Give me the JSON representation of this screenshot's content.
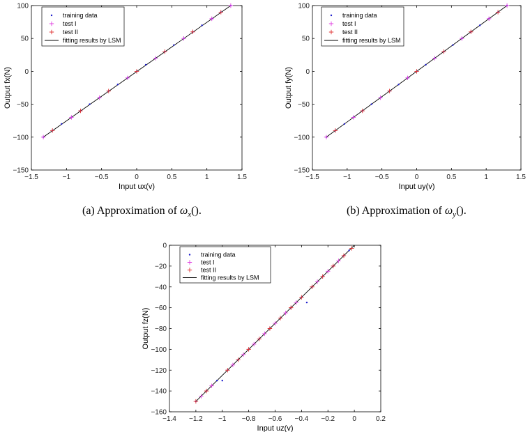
{
  "captions": [
    {
      "prefix": "(a)  Approximation of ",
      "symbol": "ω",
      "subscript": "x",
      "suffix": "()."
    },
    {
      "prefix": "(b)  Approximation of ",
      "symbol": "ω",
      "subscript": "y",
      "suffix": "()."
    }
  ],
  "chart_data": [
    {
      "type": "scatter",
      "xlabel": "Input ux(v)",
      "ylabel": "Output fx(N)",
      "xlim": [
        -1.5,
        1.5
      ],
      "ylim": [
        -150,
        100
      ],
      "xticks": [
        -1.5,
        -1,
        -0.5,
        0,
        0.5,
        1,
        1.5
      ],
      "yticks": [
        -150,
        -100,
        -50,
        0,
        50,
        100
      ],
      "xtick_labels": [
        "−1.5",
        "−1",
        "−0.5",
        "0",
        "0.5",
        "1",
        "1.5"
      ],
      "ytick_labels": [
        "−150",
        "−100",
        "−50",
        "0",
        "50",
        "100"
      ],
      "legend_position": "top-left",
      "legend": [
        "training data",
        "test I",
        "test II",
        "fitting results by LSM"
      ],
      "fit_line": {
        "x": [
          -1.33,
          1.34
        ],
        "y": [
          -100,
          100
        ]
      },
      "series": [
        {
          "name": "training data",
          "marker": "dot",
          "color": "#1a1acc",
          "x": [
            -1.33,
            -1.2,
            -1.07,
            -0.93,
            -0.8,
            -0.67,
            -0.53,
            -0.4,
            -0.27,
            -0.13,
            0,
            0.13,
            0.27,
            0.4,
            0.53,
            0.67,
            0.8,
            0.93,
            1.07,
            1.2,
            1.34
          ],
          "y": [
            -100,
            -90,
            -80,
            -70,
            -60,
            -50,
            -40,
            -30,
            -20,
            -10,
            0,
            10,
            20,
            30,
            40,
            50,
            60,
            70,
            80,
            90,
            100
          ]
        },
        {
          "name": "test I",
          "marker": "plus",
          "color": "#e040e0",
          "x": [
            -1.33,
            -0.93,
            -0.53,
            -0.13,
            0.27,
            0.67,
            1.07,
            1.34
          ],
          "y": [
            -100,
            -70,
            -40,
            -10,
            20,
            50,
            80,
            100
          ]
        },
        {
          "name": "test II",
          "marker": "plus",
          "color": "#e03030",
          "x": [
            -1.2,
            -0.8,
            -0.4,
            0,
            0.4,
            0.8,
            1.2
          ],
          "y": [
            -90,
            -60,
            -30,
            0,
            30,
            60,
            90
          ]
        }
      ]
    },
    {
      "type": "scatter",
      "xlabel": "Input uy(v)",
      "ylabel": "Output fy(N)",
      "xlim": [
        -1.5,
        1.5
      ],
      "ylim": [
        -150,
        100
      ],
      "xticks": [
        -1.5,
        -1,
        -0.5,
        0,
        0.5,
        1,
        1.5
      ],
      "yticks": [
        -150,
        -100,
        -50,
        0,
        50,
        100
      ],
      "xtick_labels": [
        "−1.5",
        "−1",
        "−0.5",
        "0",
        "0.5",
        "1",
        "1.5"
      ],
      "ytick_labels": [
        "−150",
        "−100",
        "−50",
        "0",
        "50",
        "100"
      ],
      "legend_position": "top-left",
      "legend": [
        "training data",
        "test I",
        "test II",
        "fitting results by LSM"
      ],
      "fit_line": {
        "x": [
          -1.3,
          1.3
        ],
        "y": [
          -100,
          100
        ]
      },
      "series": [
        {
          "name": "training data",
          "marker": "dot",
          "color": "#1a1acc",
          "x": [
            -1.3,
            -1.17,
            -1.04,
            -0.91,
            -0.78,
            -0.65,
            -0.52,
            -0.39,
            -0.26,
            -0.13,
            0,
            0.13,
            0.26,
            0.39,
            0.52,
            0.65,
            0.78,
            0.91,
            1.04,
            1.17,
            1.3
          ],
          "y": [
            -100,
            -90,
            -80,
            -70,
            -60,
            -50,
            -40,
            -30,
            -20,
            -10,
            0,
            10,
            20,
            30,
            40,
            50,
            60,
            70,
            80,
            90,
            100
          ]
        },
        {
          "name": "test I",
          "marker": "plus",
          "color": "#e040e0",
          "x": [
            -1.3,
            -0.91,
            -0.52,
            -0.13,
            0.26,
            0.65,
            1.04,
            1.3
          ],
          "y": [
            -100,
            -70,
            -40,
            -10,
            20,
            50,
            80,
            100
          ]
        },
        {
          "name": "test II",
          "marker": "plus",
          "color": "#e03030",
          "x": [
            -1.17,
            -0.78,
            -0.39,
            0,
            0.39,
            0.78,
            1.17
          ],
          "y": [
            -90,
            -60,
            -30,
            0,
            30,
            60,
            90
          ]
        }
      ]
    },
    {
      "type": "scatter",
      "xlabel": "Input uz(v)",
      "ylabel": "Output fz(N)",
      "xlim": [
        -1.4,
        0.2
      ],
      "ylim": [
        -160,
        0
      ],
      "xticks": [
        -1.4,
        -1.2,
        -1,
        -0.8,
        -0.6,
        -0.4,
        -0.2,
        0,
        0.2
      ],
      "yticks": [
        -160,
        -140,
        -120,
        -100,
        -80,
        -60,
        -40,
        -20,
        0
      ],
      "xtick_labels": [
        "−1.4",
        "−1.2",
        "−1",
        "−0.8",
        "−0.6",
        "−0.4",
        "−0.2",
        "0",
        "0.2"
      ],
      "ytick_labels": [
        "−160",
        "−140",
        "−120",
        "−100",
        "−80",
        "−60",
        "−40",
        "−20",
        "0"
      ],
      "legend_position": "top-left",
      "legend": [
        "training data",
        "test I",
        "test II",
        "fitting results by LSM"
      ],
      "fit_line": {
        "x": [
          -1.2,
          0
        ],
        "y": [
          -150,
          0
        ]
      },
      "series": [
        {
          "name": "training data",
          "marker": "dot",
          "color": "#1a1acc",
          "x": [
            -1.2,
            -1.12,
            -1.04,
            -1.0,
            -0.96,
            -0.88,
            -0.8,
            -0.72,
            -0.64,
            -0.56,
            -0.48,
            -0.4,
            -0.36,
            -0.32,
            -0.24,
            -0.16,
            -0.08,
            -0.04
          ],
          "y": [
            -150,
            -140,
            -130,
            -130,
            -120,
            -110,
            -100,
            -90,
            -80,
            -70,
            -60,
            -50,
            -55,
            -40,
            -30,
            -20,
            -10,
            -5
          ]
        },
        {
          "name": "test I",
          "marker": "plus",
          "color": "#e040e0",
          "x": [
            -1.16,
            -1.08,
            -0.92,
            -0.84,
            -0.76,
            -0.68,
            -0.6,
            -0.52,
            -0.44,
            -0.28,
            -0.2,
            -0.12
          ],
          "y": [
            -145,
            -135,
            -115,
            -105,
            -95,
            -85,
            -75,
            -65,
            -55,
            -35,
            -25,
            -15
          ]
        },
        {
          "name": "test II",
          "marker": "plus",
          "color": "#e03030",
          "x": [
            -1.2,
            -1.12,
            -0.96,
            -0.88,
            -0.8,
            -0.72,
            -0.64,
            -0.56,
            -0.48,
            -0.4,
            -0.32,
            -0.24,
            -0.16,
            -0.08,
            -0.02
          ],
          "y": [
            -150,
            -140,
            -120,
            -110,
            -100,
            -90,
            -80,
            -70,
            -60,
            -50,
            -40,
            -30,
            -20,
            -10,
            -3
          ]
        }
      ]
    }
  ]
}
